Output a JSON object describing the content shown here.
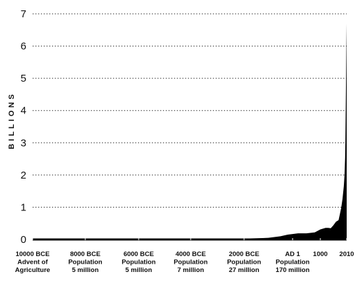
{
  "chart_data": {
    "type": "area",
    "title": "",
    "ylabel": "BILLIONS",
    "xlabel": "",
    "ylim": [
      0,
      7
    ],
    "yticks": [
      0,
      1,
      2,
      3,
      4,
      5,
      6,
      7
    ],
    "grid": "horizontal-dotted",
    "xticks": [
      {
        "year": -10000,
        "lines": [
          "10000 BCE",
          "Advent of",
          "Agriculture"
        ]
      },
      {
        "year": -8000,
        "lines": [
          "8000 BCE",
          "Population",
          "5 million"
        ]
      },
      {
        "year": -6000,
        "lines": [
          "6000 BCE",
          "Population",
          "5 million"
        ]
      },
      {
        "year": -4000,
        "lines": [
          "4000 BCE",
          "Population",
          "7 million"
        ]
      },
      {
        "year": -2000,
        "lines": [
          "2000 BCE",
          "Population",
          "27 million"
        ]
      },
      {
        "year": 1,
        "lines": [
          "AD 1",
          "Population",
          "170 million"
        ]
      },
      {
        "year": 1000,
        "lines": [
          "1000"
        ]
      },
      {
        "year": 2010,
        "lines": [
          "2010"
        ]
      }
    ],
    "series": [
      {
        "x": [
          -10000,
          -8000,
          -6000,
          -4000,
          -3000,
          -2000,
          -1000,
          -500,
          -200,
          1,
          200,
          500,
          800,
          1000,
          1200,
          1300,
          1400,
          1500,
          1600,
          1700,
          1750,
          1800,
          1850,
          1900,
          1927,
          1950,
          1960,
          1974,
          1987,
          1999,
          2010
        ],
        "values": [
          0.005,
          0.005,
          0.005,
          0.007,
          0.014,
          0.027,
          0.05,
          0.1,
          0.15,
          0.17,
          0.19,
          0.19,
          0.22,
          0.31,
          0.36,
          0.36,
          0.35,
          0.44,
          0.55,
          0.6,
          0.79,
          0.98,
          1.26,
          1.65,
          2.0,
          2.52,
          3.0,
          4.0,
          5.0,
          6.0,
          6.7
        ]
      }
    ]
  }
}
